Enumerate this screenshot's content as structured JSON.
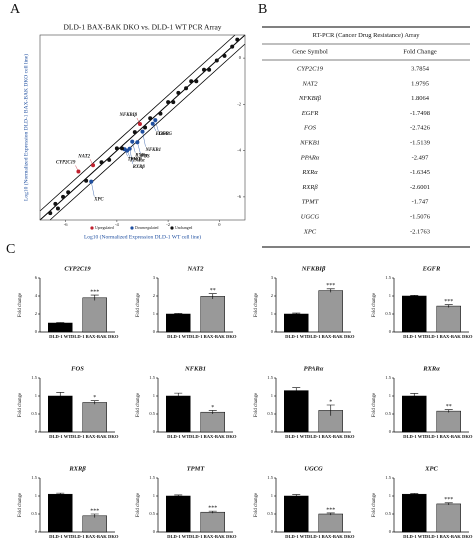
{
  "panel_labels": [
    "A",
    "B",
    "C"
  ],
  "chart_data": [
    {
      "type": "scatter",
      "title": "DLD-1 BAX-BAK DKO vs. DLD-1 WT  PCR Array",
      "x_label": "Log10 (Normalized Expression DLD-1 WT cell line)",
      "y_label": "Log10 (Normalized Expression DLD-1 BAX-BAK DKO cell line)",
      "xlim": [
        -7,
        1
      ],
      "ylim": [
        -7,
        1
      ],
      "xticks": [
        -6,
        -4,
        -2,
        0
      ],
      "yticks": [
        -6,
        -4,
        -2,
        0
      ],
      "legend": "bottom",
      "series": [
        {
          "name": "Upregulated",
          "color": "#c0212f",
          "labels": [
            "CYP2C19",
            "NAT2",
            "NFKBIβ"
          ],
          "x": [
            -5.5,
            -4.93,
            -3.1
          ],
          "values": [
            -4.9,
            -4.63,
            -2.85
          ]
        },
        {
          "name": "Downregulated",
          "color": "#1f4fa0",
          "labels": [
            "EGFR",
            "FOS",
            "NFKB1",
            "PPARα",
            "RXRα",
            "RXRβ",
            "TPMT",
            "UGCG",
            "XPC"
          ],
          "x": [
            -2.6,
            -3.2,
            -3.0,
            -3.6,
            -3.4,
            -3.5,
            -3.7,
            -2.5,
            -5.0
          ],
          "values": [
            -2.84,
            -3.64,
            -3.18,
            -4.0,
            -3.61,
            -3.92,
            -3.94,
            -2.68,
            -5.34
          ]
        },
        {
          "name": "Unchanged",
          "color": "#111111",
          "x": [
            -6.6,
            -6.4,
            -6.3,
            -6.1,
            -5.9,
            -5.2,
            -4.6,
            -4.3,
            -4.0,
            -3.8,
            -3.3,
            -2.9,
            -2.7,
            -2.3,
            -2.0,
            -1.8,
            -1.6,
            -1.3,
            -1.1,
            -0.9,
            -0.6,
            -0.4,
            -0.1,
            0.2,
            0.5,
            0.7
          ],
          "values": [
            -6.7,
            -6.3,
            -6.5,
            -6.0,
            -5.8,
            -5.3,
            -4.5,
            -4.4,
            -3.9,
            -3.9,
            -3.2,
            -3.0,
            -2.6,
            -2.4,
            -1.9,
            -1.9,
            -1.5,
            -1.3,
            -1.0,
            -1.0,
            -0.5,
            -0.5,
            -0.1,
            0.1,
            0.5,
            0.8
          ]
        }
      ]
    },
    {
      "type": "bar",
      "title": "CYP2C19",
      "y_label": "Fold change",
      "categories": [
        "DLD-1 WT",
        "DLD-1 BAX-BAK DKO"
      ],
      "values": [
        1.0,
        3.8
      ],
      "errors": [
        0.05,
        0.3
      ],
      "colors": [
        "#000000",
        "#999999"
      ],
      "annotation": "***",
      "ylim": [
        0,
        6
      ],
      "yticks": [
        0,
        2,
        4,
        6
      ]
    },
    {
      "type": "bar",
      "title": "NAT2",
      "y_label": "Fold change",
      "categories": [
        "DLD-1 WT",
        "DLD-1 BAX-BAK DKO"
      ],
      "values": [
        1.0,
        1.98
      ],
      "errors": [
        0.03,
        0.15
      ],
      "colors": [
        "#000000",
        "#999999"
      ],
      "annotation": "**",
      "ylim": [
        0,
        3
      ],
      "yticks": [
        0,
        1,
        2,
        3
      ]
    },
    {
      "type": "bar",
      "title": "NFKBIβ",
      "y_label": "Fold change",
      "categories": [
        "DLD-1 WT",
        "DLD-1 BAX-BAK DKO"
      ],
      "values": [
        1.0,
        2.3
      ],
      "errors": [
        0.05,
        0.1
      ],
      "colors": [
        "#000000",
        "#999999"
      ],
      "annotation": "***",
      "ylim": [
        0,
        3
      ],
      "yticks": [
        0,
        1,
        2,
        3
      ]
    },
    {
      "type": "bar",
      "title": "EGFR",
      "y_label": "Fold change",
      "categories": [
        "DLD-1 WT",
        "DLD-1 BAX-BAK DKO"
      ],
      "values": [
        1.0,
        0.72
      ],
      "errors": [
        0.02,
        0.04
      ],
      "colors": [
        "#000000",
        "#999999"
      ],
      "annotation": "***",
      "ylim": [
        0,
        1.5
      ],
      "yticks": [
        0,
        0.5,
        1,
        1.5
      ]
    },
    {
      "type": "bar",
      "title": "FOS",
      "y_label": "Fold change",
      "categories": [
        "DLD-1 WT",
        "DLD-1 BAX-BAK DKO"
      ],
      "values": [
        1.0,
        0.82
      ],
      "errors": [
        0.1,
        0.05
      ],
      "colors": [
        "#000000",
        "#999999"
      ],
      "annotation": "*",
      "ylim": [
        0,
        1.5
      ],
      "yticks": [
        0,
        0.5,
        1,
        1.5
      ]
    },
    {
      "type": "bar",
      "title": "NFKB1",
      "y_label": "Fold change",
      "categories": [
        "DLD-1 WT",
        "DLD-1 BAX-BAK DKO"
      ],
      "values": [
        1.0,
        0.55
      ],
      "errors": [
        0.08,
        0.05
      ],
      "colors": [
        "#000000",
        "#999999"
      ],
      "annotation": "*",
      "ylim": [
        0,
        1.5
      ],
      "yticks": [
        0,
        0.5,
        1,
        1.5
      ]
    },
    {
      "type": "bar",
      "title": "PPARα",
      "y_label": "Fold change",
      "categories": [
        "DLD-1 WT",
        "DLD-1 BAX-BAK DKO"
      ],
      "values": [
        1.15,
        0.6
      ],
      "errors": [
        0.08,
        0.15
      ],
      "colors": [
        "#000000",
        "#999999"
      ],
      "annotation": "*",
      "ylim": [
        0,
        1.5
      ],
      "yticks": [
        0,
        0.5,
        1,
        1.5
      ]
    },
    {
      "type": "bar",
      "title": "RXRα",
      "y_label": "Fold change",
      "categories": [
        "DLD-1 WT",
        "DLD-1 BAX-BAK DKO"
      ],
      "values": [
        1.0,
        0.58
      ],
      "errors": [
        0.07,
        0.04
      ],
      "colors": [
        "#000000",
        "#999999"
      ],
      "annotation": "**",
      "ylim": [
        0,
        1.5
      ],
      "yticks": [
        0,
        0.5,
        1,
        1.5
      ]
    },
    {
      "type": "bar",
      "title": "RXRβ",
      "y_label": "Fold change",
      "categories": [
        "DLD-1 WT",
        "DLD-1 BAX-BAK DKO"
      ],
      "values": [
        1.05,
        0.45
      ],
      "errors": [
        0.03,
        0.05
      ],
      "colors": [
        "#000000",
        "#999999"
      ],
      "annotation": "***",
      "ylim": [
        0,
        1.5
      ],
      "yticks": [
        0,
        0.5,
        1,
        1.5
      ]
    },
    {
      "type": "bar",
      "title": "TPMT",
      "y_label": "Fold change",
      "categories": [
        "DLD-1 WT",
        "DLD-1 BAX-BAK DKO"
      ],
      "values": [
        1.0,
        0.55
      ],
      "errors": [
        0.03,
        0.03
      ],
      "colors": [
        "#000000",
        "#999999"
      ],
      "annotation": "***",
      "ylim": [
        0,
        1.5
      ],
      "yticks": [
        0,
        0.5,
        1,
        1.5
      ]
    },
    {
      "type": "bar",
      "title": "UGCG",
      "y_label": "Fold change",
      "categories": [
        "DLD-1 WT",
        "DLD-1 BAX-BAK DKO"
      ],
      "values": [
        1.0,
        0.5
      ],
      "errors": [
        0.04,
        0.03
      ],
      "colors": [
        "#000000",
        "#999999"
      ],
      "annotation": "***",
      "ylim": [
        0,
        1.5
      ],
      "yticks": [
        0,
        0.5,
        1,
        1.5
      ]
    },
    {
      "type": "bar",
      "title": "XPC",
      "y_label": "Fold change",
      "categories": [
        "DLD-1 WT",
        "DLD-1 BAX-BAK DKO"
      ],
      "values": [
        1.05,
        0.78
      ],
      "errors": [
        0.02,
        0.03
      ],
      "colors": [
        "#000000",
        "#999999"
      ],
      "annotation": "***",
      "ylim": [
        0,
        1.5
      ],
      "yticks": [
        0,
        0.5,
        1,
        1.5
      ]
    }
  ],
  "table": {
    "title": "RT-PCR (Cancer Drug Resistance) Array",
    "columns": [
      "Gene Symbol",
      "Fold Change"
    ],
    "rows": [
      [
        "CYP2C19",
        3.7854
      ],
      [
        "NAT2",
        1.9795
      ],
      [
        "NFKBIβ",
        1.8064
      ],
      [
        "EGFR",
        -1.7498
      ],
      [
        "FOS",
        -2.7426
      ],
      [
        "NFKB1",
        -1.5139
      ],
      [
        "PPARα",
        -2.497
      ],
      [
        "RXRα",
        -1.6345
      ],
      [
        "RXRβ",
        -2.6001
      ],
      [
        "TPMT",
        -1.747
      ],
      [
        "UGCG",
        -1.5076
      ],
      [
        "XPC",
        -2.1763
      ]
    ]
  }
}
